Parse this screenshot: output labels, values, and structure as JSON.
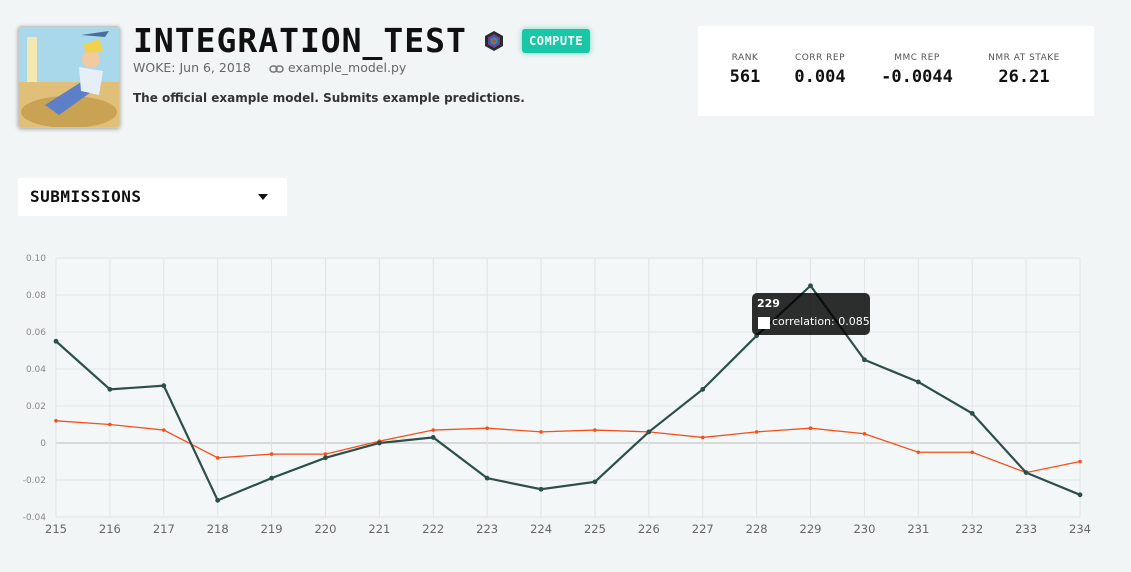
{
  "model": {
    "name": "INTEGRATION_TEST",
    "badge": "COMPUTE",
    "woke": "WOKE: Jun 6, 2018",
    "link_text": "example_model.py",
    "description": "The official example model. Submits example predictions."
  },
  "stats": [
    {
      "label": "RANK",
      "value": "561"
    },
    {
      "label": "CORR REP",
      "value": "0.004"
    },
    {
      "label": "MMC REP",
      "value": "-0.0044"
    },
    {
      "label": "NMR AT STAKE",
      "value": "26.21"
    }
  ],
  "dropdown": {
    "selected": "SUBMISSIONS"
  },
  "colors": {
    "accent": "#19c6a6",
    "line_dark": "#2d4f4a",
    "line_orange": "#f4511e",
    "background": "#f2f5f5"
  },
  "icons": [
    "badge-icon",
    "link-icon",
    "chevron-down-icon"
  ],
  "tooltip": {
    "title": "229",
    "text": "correlation: 0.085"
  },
  "chart_data": {
    "type": "line",
    "x": [
      215,
      216,
      217,
      218,
      219,
      220,
      221,
      222,
      223,
      224,
      225,
      226,
      227,
      228,
      229,
      230,
      231,
      232,
      233,
      234
    ],
    "series": [
      {
        "name": "correlation",
        "color": "#2d4f4a",
        "values": [
          0.055,
          0.029,
          0.031,
          -0.031,
          -0.019,
          -0.008,
          0.0,
          0.003,
          -0.019,
          -0.025,
          -0.021,
          0.006,
          0.029,
          0.058,
          0.085,
          0.045,
          0.033,
          0.016,
          -0.016,
          -0.028
        ]
      },
      {
        "color": "#f4511e",
        "values": [
          0.012,
          0.01,
          0.007,
          -0.008,
          -0.006,
          -0.006,
          0.001,
          0.007,
          0.008,
          0.006,
          0.007,
          0.006,
          0.003,
          0.006,
          0.008,
          0.005,
          -0.005,
          -0.005,
          -0.016,
          -0.01
        ]
      }
    ],
    "yticks": [
      "0.10",
      "0.08",
      "0.06",
      "0.04",
      "0.02",
      "0",
      "-0.02",
      "-0.04"
    ],
    "ylim": [
      -0.04,
      0.1
    ],
    "grid": true
  }
}
